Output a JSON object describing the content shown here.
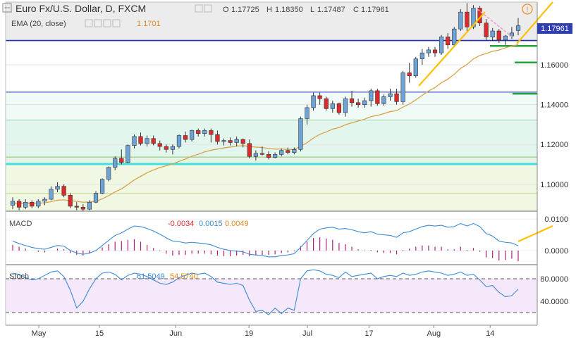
{
  "header": {
    "title": "Euro Fx/U.S. Dollar, D, FXCM",
    "ohlc": {
      "o_label": "O",
      "o_value": "1.17725",
      "h_label": "H",
      "h_value": "1.18350",
      "l_label": "L",
      "l_value": "1.17487",
      "c_label": "C",
      "c_value": "1.17961"
    },
    "ema_label": "EMA (20, close)",
    "ema_value": "1.1701",
    "alert_icon": "exclamation-circle-icon"
  },
  "macd_header": {
    "label": "MACD",
    "v1": "-0.0034",
    "v2": "0.0015",
    "v3": "0.0049"
  },
  "stoch_header": {
    "label": "Stoch",
    "v1": "61.5049",
    "v2": "54.5740"
  },
  "price_label": "1.17961",
  "colors": {
    "up": "#6ea3d8",
    "down": "#e0292b",
    "ema": "#d9a24a",
    "support": "#2030b0",
    "cyan": "#3fe0e0",
    "trend": "#ffc000",
    "green": "#22a03a",
    "macd_line": "#3b8bd6",
    "macd_hist": "#b01c7a",
    "stoch_line": "#3b8bd6",
    "stoch_bg": "#f4e8fa",
    "pink": "#f5a0c8"
  },
  "chart_data": [
    {
      "type": "candlestick",
      "title": "Euro Fx/U.S. Dollar, D, FXCM",
      "x_ticks": [
        "May",
        "15",
        "Jun",
        "19",
        "Jul",
        "17",
        "Aug",
        "14"
      ],
      "y_ticks": [
        "1.16000",
        "1.14000",
        "1.12000",
        "1.10000"
      ],
      "y_tick_values": [
        1.16,
        1.14,
        1.12,
        1.1
      ],
      "ylim": [
        1.0865,
        1.1915
      ],
      "candles": [
        [
          1.0895,
          1.0935,
          1.0875,
          1.0915
        ],
        [
          1.0915,
          1.0925,
          1.087,
          1.0885
        ],
        [
          1.0885,
          1.0925,
          1.0875,
          1.091
        ],
        [
          1.091,
          1.092,
          1.088,
          1.089
        ],
        [
          1.089,
          1.0925,
          1.088,
          1.0915
        ],
        [
          1.0915,
          1.0935,
          1.0895,
          1.0925
        ],
        [
          1.0925,
          1.099,
          1.092,
          1.0975
        ],
        [
          1.0975,
          1.101,
          1.096,
          1.099
        ],
        [
          1.099,
          1.1,
          1.0935,
          1.0945
        ],
        [
          1.0945,
          1.0955,
          1.088,
          1.089
        ],
        [
          1.089,
          1.091,
          1.087,
          1.0885
        ],
        [
          1.0885,
          1.09,
          1.086,
          1.0875
        ],
        [
          1.0875,
          1.092,
          1.087,
          1.091
        ],
        [
          1.091,
          1.0965,
          1.0905,
          1.0955
        ],
        [
          1.0955,
          1.103,
          1.095,
          1.1025
        ],
        [
          1.1025,
          1.109,
          1.1015,
          1.1085
        ],
        [
          1.1085,
          1.114,
          1.107,
          1.113
        ],
        [
          1.113,
          1.1175,
          1.11,
          1.111
        ],
        [
          1.111,
          1.12,
          1.1105,
          1.1195
        ],
        [
          1.1195,
          1.125,
          1.118,
          1.124
        ],
        [
          1.124,
          1.126,
          1.1195,
          1.1205
        ],
        [
          1.1205,
          1.1245,
          1.119,
          1.123
        ],
        [
          1.123,
          1.1245,
          1.1195,
          1.1205
        ],
        [
          1.1205,
          1.122,
          1.117,
          1.119
        ],
        [
          1.119,
          1.12,
          1.116,
          1.1175
        ],
        [
          1.1175,
          1.12,
          1.115,
          1.119
        ],
        [
          1.119,
          1.125,
          1.118,
          1.1245
        ],
        [
          1.1245,
          1.1265,
          1.121,
          1.1225
        ],
        [
          1.1225,
          1.1275,
          1.1215,
          1.127
        ],
        [
          1.127,
          1.128,
          1.124,
          1.1255
        ],
        [
          1.1255,
          1.128,
          1.124,
          1.127
        ],
        [
          1.127,
          1.128,
          1.121,
          1.125
        ],
        [
          1.125,
          1.127,
          1.12,
          1.1215
        ],
        [
          1.1215,
          1.123,
          1.1195,
          1.122
        ],
        [
          1.122,
          1.1235,
          1.1195,
          1.121
        ],
        [
          1.121,
          1.124,
          1.119,
          1.1225
        ],
        [
          1.1225,
          1.123,
          1.1185,
          1.1205
        ],
        [
          1.1205,
          1.1225,
          1.113,
          1.114
        ],
        [
          1.114,
          1.117,
          1.112,
          1.1155
        ],
        [
          1.1155,
          1.119,
          1.1145,
          1.115
        ],
        [
          1.115,
          1.1165,
          1.1125,
          1.1135
        ],
        [
          1.1135,
          1.116,
          1.113,
          1.115
        ],
        [
          1.115,
          1.118,
          1.114,
          1.117
        ],
        [
          1.117,
          1.1185,
          1.115,
          1.116
        ],
        [
          1.116,
          1.1185,
          1.115,
          1.1175
        ],
        [
          1.1175,
          1.134,
          1.1165,
          1.133
        ],
        [
          1.133,
          1.14,
          1.13,
          1.1385
        ],
        [
          1.1385,
          1.146,
          1.137,
          1.1445
        ],
        [
          1.1445,
          1.146,
          1.14,
          1.143
        ],
        [
          1.143,
          1.144,
          1.137,
          1.138
        ],
        [
          1.138,
          1.142,
          1.136,
          1.1405
        ],
        [
          1.1405,
          1.141,
          1.135,
          1.136
        ],
        [
          1.136,
          1.144,
          1.134,
          1.143
        ],
        [
          1.143,
          1.147,
          1.139,
          1.141
        ],
        [
          1.141,
          1.143,
          1.1385,
          1.14
        ],
        [
          1.14,
          1.1435,
          1.1385,
          1.142
        ],
        [
          1.142,
          1.148,
          1.139,
          1.147
        ],
        [
          1.147,
          1.148,
          1.1395,
          1.1405
        ],
        [
          1.1405,
          1.145,
          1.1395,
          1.144
        ],
        [
          1.144,
          1.148,
          1.142,
          1.1455
        ],
        [
          1.1455,
          1.148,
          1.14,
          1.1415
        ],
        [
          1.1415,
          1.157,
          1.14,
          1.156
        ],
        [
          1.156,
          1.161,
          1.151,
          1.1545
        ],
        [
          1.1545,
          1.164,
          1.1535,
          1.163
        ],
        [
          1.163,
          1.168,
          1.16,
          1.166
        ],
        [
          1.166,
          1.169,
          1.164,
          1.1675
        ],
        [
          1.1675,
          1.169,
          1.164,
          1.166
        ],
        [
          1.166,
          1.175,
          1.165,
          1.174
        ],
        [
          1.174,
          1.176,
          1.168,
          1.17
        ],
        [
          1.17,
          1.179,
          1.169,
          1.178
        ],
        [
          1.178,
          1.188,
          1.177,
          1.1865
        ],
        [
          1.1865,
          1.191,
          1.177,
          1.179
        ],
        [
          1.179,
          1.19,
          1.178,
          1.1885
        ],
        [
          1.1885,
          1.1895,
          1.1795,
          1.181
        ],
        [
          1.181,
          1.183,
          1.172,
          1.174
        ],
        [
          1.174,
          1.1785,
          1.172,
          1.177
        ],
        [
          1.177,
          1.178,
          1.171,
          1.1725
        ],
        [
          1.1725,
          1.175,
          1.17,
          1.1745
        ],
        [
          1.1745,
          1.179,
          1.173,
          1.176
        ],
        [
          1.17725,
          1.1835,
          1.17487,
          1.17961
        ]
      ],
      "ema20": [
        1.0905,
        1.0905,
        1.0905,
        1.0904,
        1.0905,
        1.0907,
        1.0913,
        1.092,
        1.0922,
        1.0918,
        1.0914,
        1.091,
        1.0911,
        1.0915,
        1.0927,
        1.0943,
        1.0962,
        1.0977,
        1.0999,
        1.1022,
        1.104,
        1.1058,
        1.1072,
        1.1084,
        1.1093,
        1.1102,
        1.1115,
        1.1127,
        1.1141,
        1.1151,
        1.1163,
        1.1171,
        1.1177,
        1.1183,
        1.1187,
        1.1192,
        1.1194,
        1.119,
        1.1187,
        1.1185,
        1.118,
        1.1177,
        1.1177,
        1.1175,
        1.1175,
        1.1191,
        1.1209,
        1.1232,
        1.1251,
        1.1263,
        1.1277,
        1.1285,
        1.1299,
        1.1309,
        1.1318,
        1.1327,
        1.134,
        1.1346,
        1.1355,
        1.1365,
        1.137,
        1.1388,
        1.1403,
        1.1424,
        1.1447,
        1.1469,
        1.1486,
        1.151,
        1.1528,
        1.1552,
        1.1582,
        1.1602,
        1.163,
        1.1647,
        1.1657,
        1.1668,
        1.1674,
        1.1685,
        1.1695,
        1.1701
      ],
      "horizontal_levels": [
        1.1722,
        1.1463,
        1.1323,
        1.1137,
        1.1102,
        1.0955
      ],
      "green_levels": [
        1.1695,
        1.1612,
        1.1455
      ]
    },
    {
      "type": "line",
      "title": "MACD",
      "y_ticks": [
        "0.0100",
        "0.0000"
      ],
      "y_tick_values": [
        0.01,
        0.0
      ],
      "ylim": [
        -0.0045,
        0.0125
      ],
      "macd_line": [
        0.003,
        0.0022,
        0.0016,
        0.001,
        0.0006,
        0.0004,
        0.001,
        0.0016,
        0.0014,
        0.0,
        -0.0008,
        -0.0012,
        -0.0008,
        0.0,
        0.0016,
        0.0032,
        0.0048,
        0.0056,
        0.0068,
        0.0078,
        0.0076,
        0.007,
        0.0062,
        0.0052,
        0.004,
        0.003,
        0.0028,
        0.0024,
        0.0026,
        0.0024,
        0.0022,
        0.0018,
        0.001,
        0.0004,
        0.0,
        -0.0002,
        -0.0004,
        -0.0012,
        -0.0014,
        -0.0016,
        -0.002,
        -0.002,
        -0.0016,
        -0.0014,
        -0.001,
        0.001,
        0.0032,
        0.0054,
        0.0068,
        0.0072,
        0.0074,
        0.0068,
        0.007,
        0.0066,
        0.006,
        0.0056,
        0.006,
        0.0052,
        0.005,
        0.0048,
        0.0042,
        0.0056,
        0.006,
        0.0068,
        0.0076,
        0.008,
        0.0078,
        0.008,
        0.0074,
        0.0076,
        0.0086,
        0.0078,
        0.0086,
        0.0076,
        0.0054,
        0.0046,
        0.003,
        0.0026,
        0.0024,
        0.0015
      ],
      "histogram": [
        0.0018,
        0.0012,
        0.0006,
        0.0,
        -0.0004,
        -0.0006,
        0.0,
        0.0006,
        0.0004,
        -0.0008,
        -0.0014,
        -0.0016,
        -0.001,
        -0.0002,
        0.001,
        0.002,
        0.0028,
        0.003,
        0.0034,
        0.0036,
        0.0028,
        0.0018,
        0.0008,
        -0.0002,
        -0.001,
        -0.0016,
        -0.0014,
        -0.0014,
        -0.001,
        -0.001,
        -0.001,
        -0.0012,
        -0.0016,
        -0.0018,
        -0.0018,
        -0.0016,
        -0.0014,
        -0.0018,
        -0.0016,
        -0.0014,
        -0.0014,
        -0.0012,
        -0.0008,
        -0.0006,
        -0.0002,
        0.0014,
        0.0028,
        0.004,
        0.0042,
        0.0038,
        0.0034,
        0.0024,
        0.002,
        0.0012,
        0.0004,
        -0.0002,
        0.0002,
        -0.0006,
        -0.0008,
        -0.0008,
        -0.0012,
        0.0002,
        0.0006,
        0.0012,
        0.0016,
        0.0016,
        0.0012,
        0.0012,
        0.0004,
        0.0004,
        0.0012,
        0.0002,
        0.0008,
        -0.0004,
        -0.0022,
        -0.0024,
        -0.0032,
        -0.003,
        -0.0026,
        -0.0034
      ]
    },
    {
      "type": "line",
      "title": "Stoch",
      "y_ticks": [
        "80.0000",
        "40.0000"
      ],
      "y_tick_values": [
        80,
        40
      ],
      "ylim": [
        0,
        105
      ],
      "stoch_line": [
        90,
        88,
        82,
        78,
        80,
        86,
        92,
        94,
        84,
        60,
        28,
        40,
        62,
        80,
        90,
        92,
        88,
        78,
        86,
        90,
        88,
        84,
        78,
        72,
        70,
        74,
        82,
        86,
        90,
        88,
        90,
        84,
        74,
        72,
        70,
        72,
        68,
        42,
        22,
        24,
        16,
        28,
        18,
        28,
        24,
        80,
        94,
        96,
        94,
        88,
        86,
        82,
        92,
        84,
        86,
        88,
        90,
        80,
        84,
        86,
        84,
        90,
        86,
        88,
        92,
        94,
        92,
        90,
        86,
        88,
        92,
        86,
        88,
        78,
        66,
        68,
        56,
        48,
        50,
        61.5
      ],
      "levels": [
        80,
        20
      ]
    }
  ]
}
